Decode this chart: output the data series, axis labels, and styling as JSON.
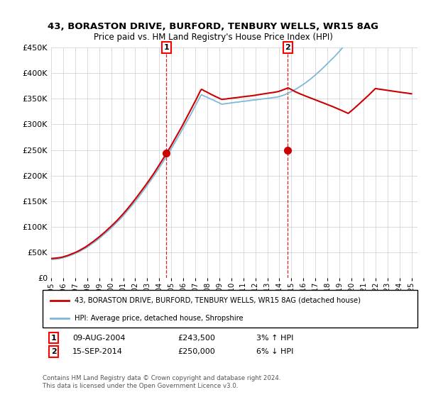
{
  "title": "43, BORASTON DRIVE, BURFORD, TENBURY WELLS, WR15 8AG",
  "subtitle": "Price paid vs. HM Land Registry's House Price Index (HPI)",
  "ylim": [
    0,
    450000
  ],
  "yticks": [
    0,
    50000,
    100000,
    150000,
    200000,
    250000,
    300000,
    350000,
    400000,
    450000
  ],
  "x_start_year": 1995,
  "x_end_year": 2025,
  "hpi_color": "#7fb8d8",
  "price_color": "#cc0000",
  "t1_year_float": 2004.6,
  "t2_year_float": 2014.7,
  "t1_price": 243500,
  "t2_price": 250000,
  "transaction1": {
    "date": "09-AUG-2004",
    "price": 243500,
    "hpi_diff": "3% ↑ HPI",
    "label": "1"
  },
  "transaction2": {
    "date": "15-SEP-2014",
    "price": 250000,
    "hpi_diff": "6% ↓ HPI",
    "label": "2"
  },
  "legend_line1": "43, BORASTON DRIVE, BURFORD, TENBURY WELLS, WR15 8AG (detached house)",
  "legend_line2": "HPI: Average price, detached house, Shropshire",
  "footer": "Contains HM Land Registry data © Crown copyright and database right 2024.\nThis data is licensed under the Open Government Licence v3.0.",
  "grid_color": "#cccccc"
}
